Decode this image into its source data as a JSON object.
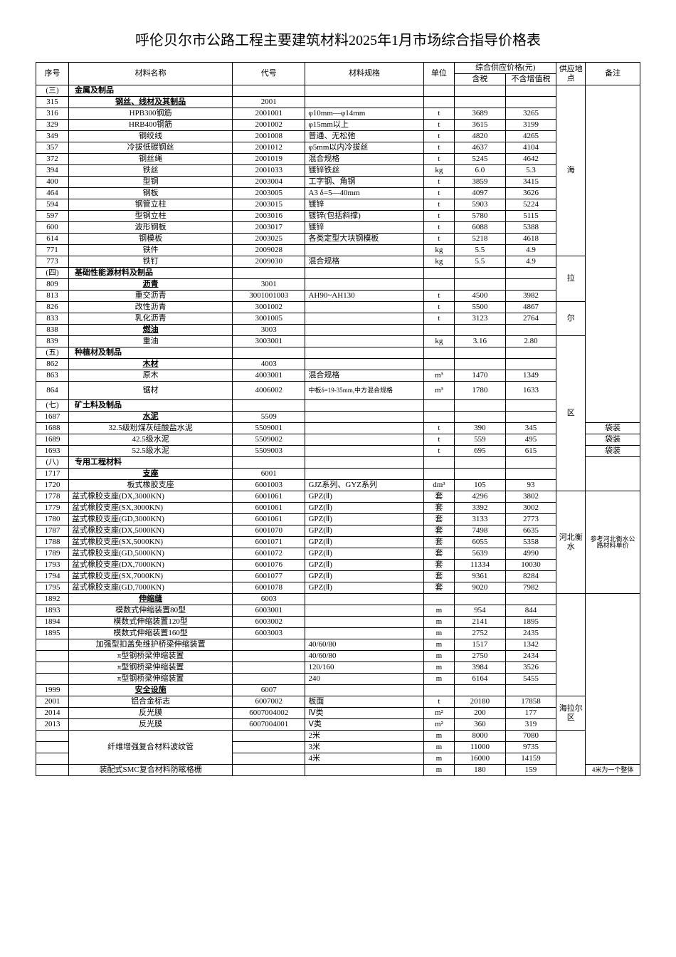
{
  "title": "呼伦贝尔市公路工程主要建筑材料2025年1月市场综合指导价格表",
  "header": {
    "seq": "序号",
    "name": "材料名称",
    "code": "代号",
    "spec": "材料规格",
    "unit": "单位",
    "price_group": "综合供应价格(元)",
    "price_tax": "含税",
    "price_notax": "不含增值税",
    "loc": "供应地点",
    "note": "备注"
  },
  "loc1": "海",
  "loc2": "拉",
  "loc3": "尔",
  "loc4": "区",
  "loc5": "河北衡水",
  "loc6": "海拉尔区",
  "note_ref": "参考河北衡水公路材料单价",
  "note_bag": "袋装",
  "note_4m": "4米为一个整体",
  "sections": [
    {
      "seq": "(三)",
      "name": "金属及制品"
    },
    {
      "seq": "315",
      "name": "钢丝、线材及其制品",
      "code": "2001",
      "sub": true
    },
    {
      "seq": "316",
      "name": "HPB300钢筋",
      "code": "2001001",
      "spec": "φ10mm—φ14mm",
      "unit": "t",
      "p1": "3689",
      "p2": "3265"
    },
    {
      "seq": "329",
      "name": "HRB400钢筋",
      "code": "2001002",
      "spec": "φ15mm以上",
      "unit": "t",
      "p1": "3615",
      "p2": "3199"
    },
    {
      "seq": "349",
      "name": "钢绞线",
      "code": "2001008",
      "spec": "普通、无松弛",
      "unit": "t",
      "p1": "4820",
      "p2": "4265"
    },
    {
      "seq": "357",
      "name": "冷拔低碳钢丝",
      "code": "2001012",
      "spec": "φ5mm以内冷拔丝",
      "unit": "t",
      "p1": "4637",
      "p2": "4104"
    },
    {
      "seq": "372",
      "name": "钢丝绳",
      "code": "2001019",
      "spec": "混合规格",
      "unit": "t",
      "p1": "5245",
      "p2": "4642"
    },
    {
      "seq": "394",
      "name": "铁丝",
      "code": "2001033",
      "spec": "镀锌铁丝",
      "unit": "kg",
      "p1": "6.0",
      "p2": "5.3"
    },
    {
      "seq": "400",
      "name": "型钢",
      "code": "2003004",
      "spec": "工字钢、角钢",
      "unit": "t",
      "p1": "3859",
      "p2": "3415"
    },
    {
      "seq": "464",
      "name": "钢板",
      "code": "2003005",
      "spec": "A3 δ=5—40mm",
      "unit": "t",
      "p1": "4097",
      "p2": "3626"
    },
    {
      "seq": "594",
      "name": "钢管立柱",
      "code": "2003015",
      "spec": "镀锌",
      "unit": "t",
      "p1": "5903",
      "p2": "5224"
    },
    {
      "seq": "597",
      "name": "型钢立柱",
      "code": "2003016",
      "spec": "镀锌(包括斜撑)",
      "unit": "t",
      "p1": "5780",
      "p2": "5115"
    },
    {
      "seq": "600",
      "name": "波形钢板",
      "code": "2003017",
      "spec": "镀锌",
      "unit": "t",
      "p1": "6088",
      "p2": "5388"
    },
    {
      "seq": "614",
      "name": "钢模板",
      "code": "2003025",
      "spec": "各类定型大块钢模板",
      "unit": "t",
      "p1": "5218",
      "p2": "4618"
    },
    {
      "seq": "771",
      "name": "铁件",
      "code": "2009028",
      "spec": "",
      "unit": "kg",
      "p1": "5.5",
      "p2": "4.9"
    },
    {
      "seq": "773",
      "name": "铁钉",
      "code": "2009030",
      "spec": "混合规格",
      "unit": "kg",
      "p1": "5.5",
      "p2": "4.9"
    },
    {
      "seq": "(四)",
      "name": "基础性能源材料及制品",
      "section": true
    },
    {
      "seq": "809",
      "name": "沥青",
      "code": "3001",
      "sub": true
    },
    {
      "seq": "813",
      "name": "重交沥青",
      "code": "3001001003",
      "spec": "AH90~AH130",
      "unit": "t",
      "p1": "4500",
      "p2": "3982"
    },
    {
      "seq": "826",
      "name": "改性沥青",
      "code": "3001002",
      "spec": "",
      "unit": "t",
      "p1": "5500",
      "p2": "4867"
    },
    {
      "seq": "833",
      "name": "乳化沥青",
      "code": "3001005",
      "spec": "",
      "unit": "t",
      "p1": "3123",
      "p2": "2764"
    },
    {
      "seq": "838",
      "name": "燃油",
      "code": "3003",
      "sub": true
    },
    {
      "seq": "839",
      "name": "重油",
      "code": "3003001",
      "spec": "",
      "unit": "kg",
      "p1": "3.16",
      "p2": "2.80"
    },
    {
      "seq": "(五)",
      "name": "种植材及制品",
      "section": true
    },
    {
      "seq": "862",
      "name": "木材",
      "code": "4003",
      "sub": true
    },
    {
      "seq": "863",
      "name": "原木",
      "code": "4003001",
      "spec": "混合规格",
      "unit": "m³",
      "p1": "1470",
      "p2": "1349"
    },
    {
      "seq": "864",
      "name": "锯材",
      "code": "4006002",
      "spec": "中板δ=19-35mm,中方混合规格",
      "unit": "m³",
      "p1": "1780",
      "p2": "1633",
      "tall": true
    },
    {
      "seq": "(七)",
      "name": "矿土料及制品",
      "section": true
    },
    {
      "seq": "1687",
      "name": "水泥",
      "code": "5509",
      "sub": true
    },
    {
      "seq": "1688",
      "name": "32.5级粉煤灰硅酸盐水泥",
      "code": "5509001",
      "spec": "",
      "unit": "t",
      "p1": "390",
      "p2": "345",
      "note": "袋装"
    },
    {
      "seq": "1689",
      "name": "42.5级水泥",
      "code": "5509002",
      "spec": "",
      "unit": "t",
      "p1": "559",
      "p2": "495",
      "note": "袋装"
    },
    {
      "seq": "1693",
      "name": "52.5级水泥",
      "code": "5509003",
      "spec": "",
      "unit": "t",
      "p1": "695",
      "p2": "615",
      "note": "袋装"
    },
    {
      "seq": "(八)",
      "name": "专用工程材料",
      "section": true
    },
    {
      "seq": "1717",
      "name": "支座",
      "code": "6001",
      "sub": true
    },
    {
      "seq": "1720",
      "name": "板式橡胶支座",
      "code": "6001003",
      "spec": "GJZ系列、GYZ系列",
      "unit": "dm³",
      "p1": "105",
      "p2": "93"
    },
    {
      "seq": "1778",
      "name": "盆式橡胶支座(DX,3000KN)",
      "code": "6001061",
      "spec": "GPZ(Ⅱ)",
      "unit": "套",
      "p1": "4296",
      "p2": "3802",
      "left": true
    },
    {
      "seq": "1779",
      "name": "盆式橡胶支座(SX,3000KN)",
      "code": "6001061",
      "spec": "GPZ(Ⅱ)",
      "unit": "套",
      "p1": "3392",
      "p2": "3002",
      "left": true
    },
    {
      "seq": "1780",
      "name": "盆式橡胶支座(GD,3000KN)",
      "code": "6001061",
      "spec": "GPZ(Ⅱ)",
      "unit": "套",
      "p1": "3133",
      "p2": "2773",
      "left": true
    },
    {
      "seq": "1787",
      "name": "盆式橡胶支座(DX,5000KN)",
      "code": "6001070",
      "spec": "GPZ(Ⅱ)",
      "unit": "套",
      "p1": "7498",
      "p2": "6635",
      "left": true
    },
    {
      "seq": "1788",
      "name": "盆式橡胶支座(SX,5000KN)",
      "code": "6001071",
      "spec": "GPZ(Ⅱ)",
      "unit": "套",
      "p1": "6055",
      "p2": "5358",
      "left": true
    },
    {
      "seq": "1789",
      "name": "盆式橡胶支座(GD,5000KN)",
      "code": "6001072",
      "spec": "GPZ(Ⅱ)",
      "unit": "套",
      "p1": "5639",
      "p2": "4990",
      "left": true
    },
    {
      "seq": "1793",
      "name": "盆式橡胶支座(DX,7000KN)",
      "code": "6001076",
      "spec": "GPZ(Ⅱ)",
      "unit": "套",
      "p1": "11334",
      "p2": "10030",
      "left": true
    },
    {
      "seq": "1794",
      "name": "盆式橡胶支座(SX,7000KN)",
      "code": "6001077",
      "spec": "GPZ(Ⅱ)",
      "unit": "套",
      "p1": "9361",
      "p2": "8284",
      "left": true
    },
    {
      "seq": "1795",
      "name": "盆式橡胶支座(GD,7000KN)",
      "code": "6001078",
      "spec": "GPZ(Ⅱ)",
      "unit": "套",
      "p1": "9020",
      "p2": "7982",
      "left": true
    },
    {
      "seq": "1892",
      "name": "伸缩缝",
      "code": "6003",
      "sub": true
    },
    {
      "seq": "1893",
      "name": "模数式伸缩装置80型",
      "code": "6003001",
      "spec": "",
      "unit": "m",
      "p1": "954",
      "p2": "844"
    },
    {
      "seq": "1894",
      "name": "模数式伸缩装置120型",
      "code": "6003002",
      "spec": "",
      "unit": "m",
      "p1": "2141",
      "p2": "1895"
    },
    {
      "seq": "1895",
      "name": "模数式伸缩装置160型",
      "code": "6003003",
      "spec": "",
      "unit": "m",
      "p1": "2752",
      "p2": "2435"
    },
    {
      "seq": "",
      "name": "加强型扣盖免维护桥梁伸缩装置",
      "code": "",
      "spec": "40/60/80",
      "unit": "m",
      "p1": "1517",
      "p2": "1342"
    },
    {
      "seq": "",
      "name": "π型钢桥梁伸缩装置",
      "code": "",
      "spec": "40/60/80",
      "unit": "m",
      "p1": "2750",
      "p2": "2434"
    },
    {
      "seq": "",
      "name": "π型钢桥梁伸缩装置",
      "code": "",
      "spec": "120/160",
      "unit": "m",
      "p1": "3984",
      "p2": "3526"
    },
    {
      "seq": "",
      "name": "π型钢桥梁伸缩装置",
      "code": "",
      "spec": "240",
      "unit": "m",
      "p1": "6164",
      "p2": "5455"
    },
    {
      "seq": "1999",
      "name": "安全设施",
      "code": "6007",
      "sub": true
    },
    {
      "seq": "2001",
      "name": "铝合金标志",
      "code": "6007002",
      "spec": "板面",
      "unit": "t",
      "p1": "20180",
      "p2": "17858"
    },
    {
      "seq": "2014",
      "name": "反光膜",
      "code": "6007004002",
      "spec": "Ⅳ类",
      "unit": "m²",
      "p1": "200",
      "p2": "177"
    },
    {
      "seq": "2013",
      "name": "反光膜",
      "code": "6007004001",
      "spec": "Ⅴ类",
      "unit": "m²",
      "p1": "360",
      "p2": "319"
    },
    {
      "seq": "",
      "name": "",
      "code": "",
      "spec": "2米",
      "unit": "m",
      "p1": "8000",
      "p2": "7080"
    },
    {
      "seq": "",
      "name": "纤维增强复合材料波纹管",
      "code": "",
      "spec": "3米",
      "unit": "m",
      "p1": "11000",
      "p2": "9735",
      "fiber": true
    },
    {
      "seq": "",
      "name": "",
      "code": "",
      "spec": "4米",
      "unit": "m",
      "p1": "16000",
      "p2": "14159"
    },
    {
      "seq": "",
      "name": "装配式SMC复合材料防眩格栅",
      "code": "",
      "spec": "",
      "unit": "m",
      "p1": "180",
      "p2": "159"
    }
  ]
}
